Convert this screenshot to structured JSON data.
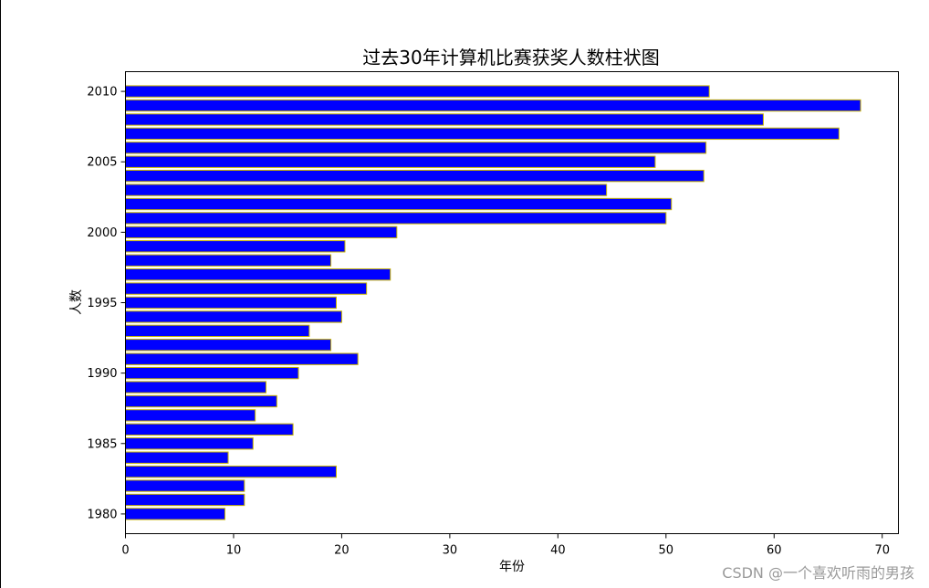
{
  "chart_data": {
    "type": "bar",
    "orientation": "horizontal",
    "title": "过去30年计算机比赛获奖人数柱状图",
    "xlabel": "年份",
    "ylabel": "人数",
    "xlim": [
      0,
      71.5
    ],
    "ylim": [
      1978.6,
      2011.4
    ],
    "x_ticks": [
      0,
      10,
      20,
      30,
      40,
      50,
      60,
      70
    ],
    "y_ticks": [
      1980,
      1985,
      1990,
      1995,
      2000,
      2005,
      2010
    ],
    "categories": [
      1980,
      1981,
      1982,
      1983,
      1984,
      1985,
      1986,
      1987,
      1988,
      1989,
      1990,
      1991,
      1992,
      1993,
      1994,
      1995,
      1996,
      1997,
      1998,
      1999,
      2000,
      2001,
      2002,
      2003,
      2004,
      2005,
      2006,
      2007,
      2008,
      2009,
      2010
    ],
    "values": [
      9.2,
      11,
      11,
      19.5,
      9.5,
      11.8,
      15.5,
      12,
      14,
      13,
      16,
      21.5,
      19,
      17,
      20,
      19.5,
      22.3,
      24.5,
      19,
      20.3,
      25.1,
      50,
      50.5,
      44.5,
      53.5,
      49,
      53.7,
      66,
      59,
      68,
      54
    ],
    "bar_color": "#0000ff",
    "edge_color": "#c8b400"
  },
  "watermark": "CSDN @一个喜欢听雨的男孩"
}
